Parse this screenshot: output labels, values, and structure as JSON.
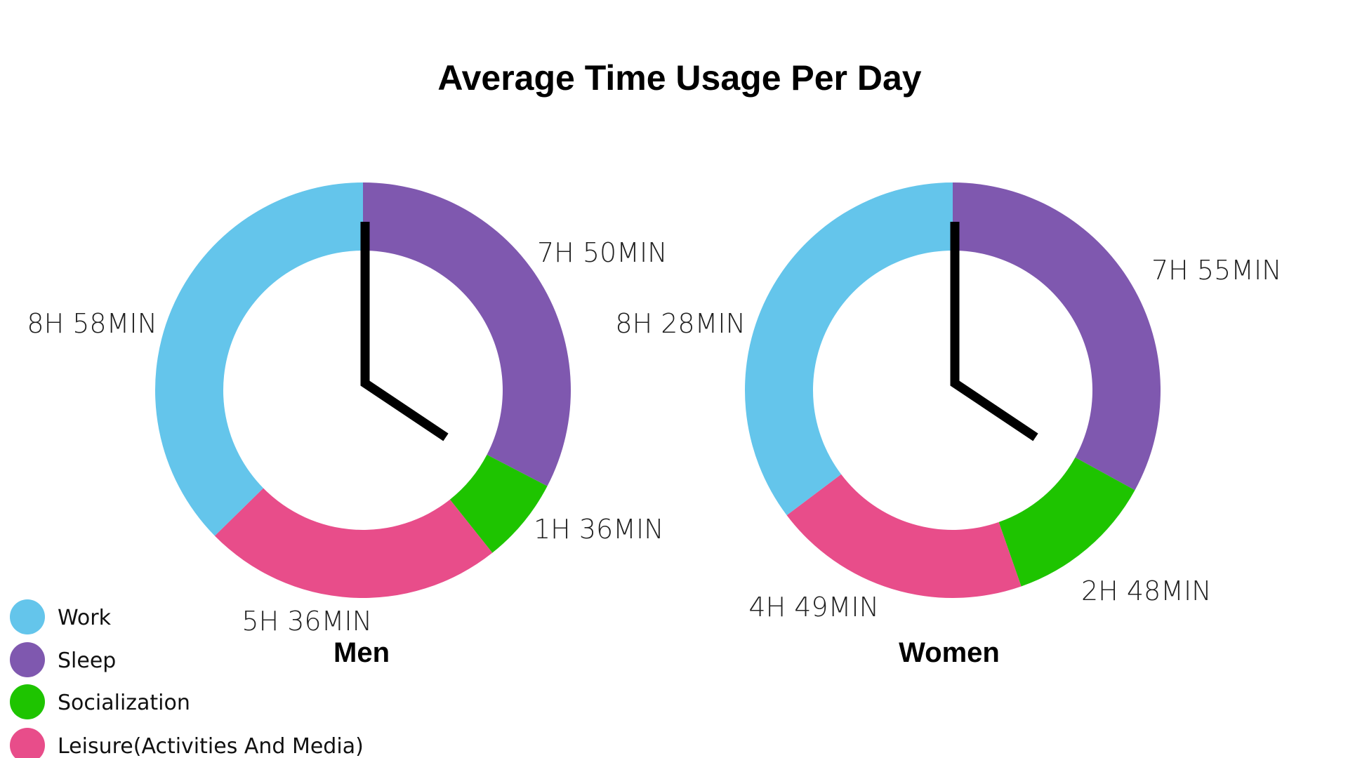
{
  "chart_data": [
    {
      "type": "pie",
      "title": "Average Time Usage Per Day",
      "name": "Men",
      "categories": [
        "Work",
        "Sleep",
        "Socialization",
        "Leisure(Activities And Media)"
      ],
      "values_minutes": [
        538,
        470,
        96,
        336
      ],
      "labels": [
        "8H 58MIN",
        "7H 50MIN",
        "1H 36MIN",
        "5H 36MIN"
      ]
    },
    {
      "type": "pie",
      "title": "Average Time Usage Per Day",
      "name": "Women",
      "categories": [
        "Work",
        "Sleep",
        "Socialization",
        "Leisure(Activities And Media)"
      ],
      "values_minutes": [
        508,
        475,
        168,
        289
      ],
      "labels": [
        "8H 28MIN",
        "7H 55MIN",
        "2H 48MIN",
        "4H 49MIN"
      ]
    }
  ],
  "page": {
    "title": "Average Time Usage Per Day"
  },
  "legend": {
    "items": [
      {
        "label": "Work",
        "color": "#64C5EB"
      },
      {
        "label": "Sleep",
        "color": "#7F58AF"
      },
      {
        "label": "Socialization",
        "color": "#1EC400"
      },
      {
        "label": "Leisure(Activities And Media)",
        "color": "#E84D8A"
      }
    ]
  },
  "clock_hand_color": "#000000"
}
